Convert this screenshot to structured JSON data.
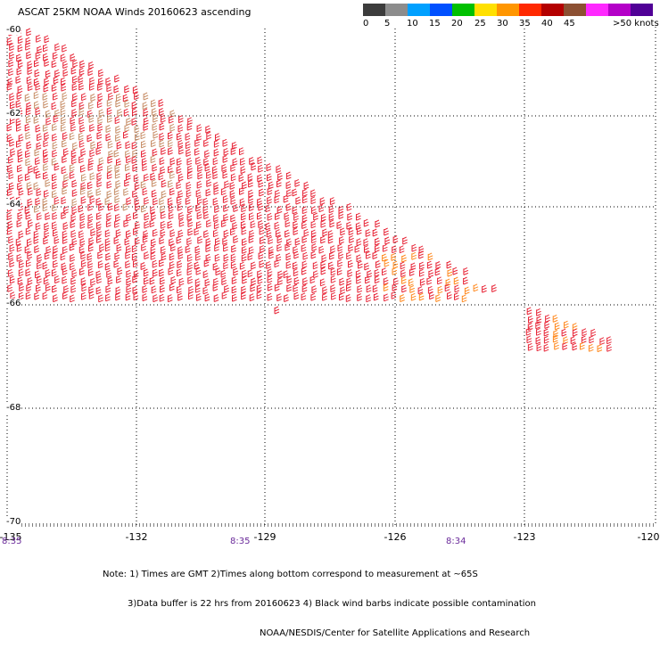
{
  "header": {
    "title": "ASCAT 25KM NOAA Winds 20160623 ascending"
  },
  "color_scale": {
    "colors": [
      "#3c3c3c",
      "#8c8c8c",
      "#00a0ff",
      "#0050ff",
      "#00c000",
      "#ffe000",
      "#ff9600",
      "#ff2800",
      "#b40000",
      "#8c5032",
      "#ff28ff",
      "#b400c8",
      "#500096"
    ],
    "labels": [
      "0",
      "5",
      "10",
      "15",
      "20",
      "25",
      "30",
      "35",
      "40",
      "45",
      ">50 knots"
    ]
  },
  "axes": {
    "longitude_labels": [
      "-135",
      "-132",
      "-129",
      "-126",
      "-123",
      "-120"
    ],
    "latitude_labels": [
      "-60",
      "-62",
      "-64",
      "-66",
      "-68",
      "-70"
    ]
  },
  "times": [
    "8:35",
    "8:35",
    "8:34"
  ],
  "notes": [
    "Note: 1) Times are GMT 2)Times along bottom correspond to measurement at ~65S",
    "3)Data buffer is 22 hrs from 20160623 4) Black wind barbs indicate possible contamination",
    "NOAA/NESDIS/Center for Satellite Applications and Research"
  ],
  "wind_swath_colors": {
    "dominant": "#e8283a",
    "secondary": "#c8906a",
    "tertiary": "#ff8a20"
  }
}
